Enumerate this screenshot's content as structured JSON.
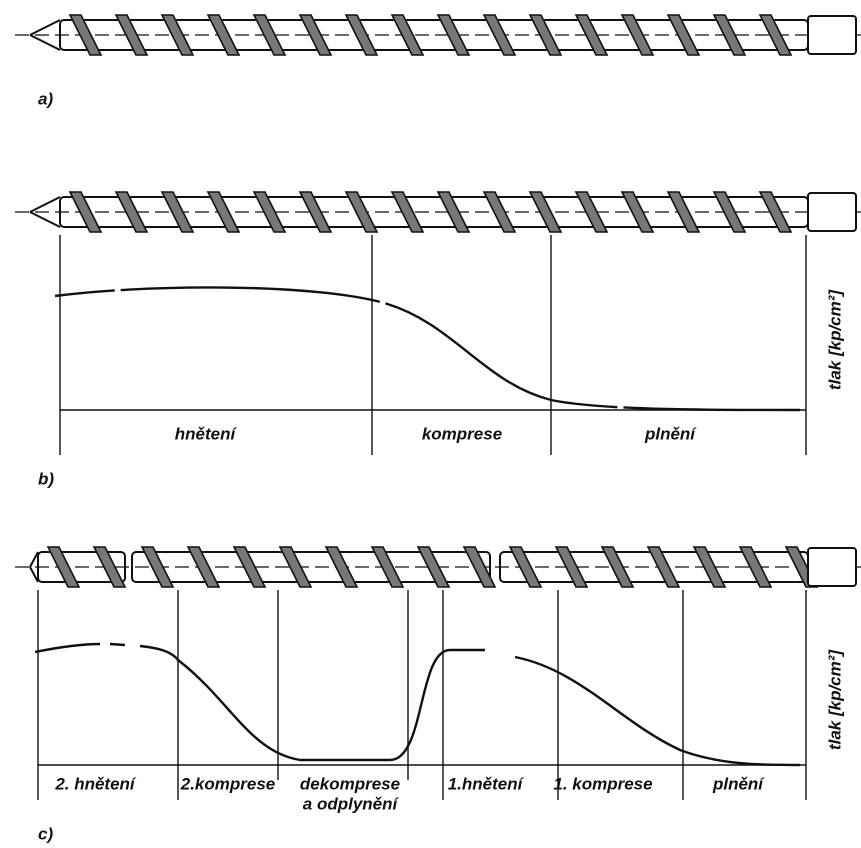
{
  "figures": [
    {
      "label": "a)"
    },
    {
      "label": "b)",
      "zones": [
        [
          "hnětení"
        ],
        [
          "komprese"
        ],
        [
          "plnění"
        ]
      ],
      "axis_label": "tlak [kp/cm²]"
    },
    {
      "label": "c)",
      "zones": [
        [
          "2. hnětení"
        ],
        [
          "2.komprese"
        ],
        [
          "dekomprese",
          "a odplynění"
        ],
        [
          "1.hnětení"
        ],
        [
          "1. komprese"
        ],
        [
          "plnění"
        ]
      ],
      "axis_label": "tlak [kp/cm²]"
    }
  ]
}
